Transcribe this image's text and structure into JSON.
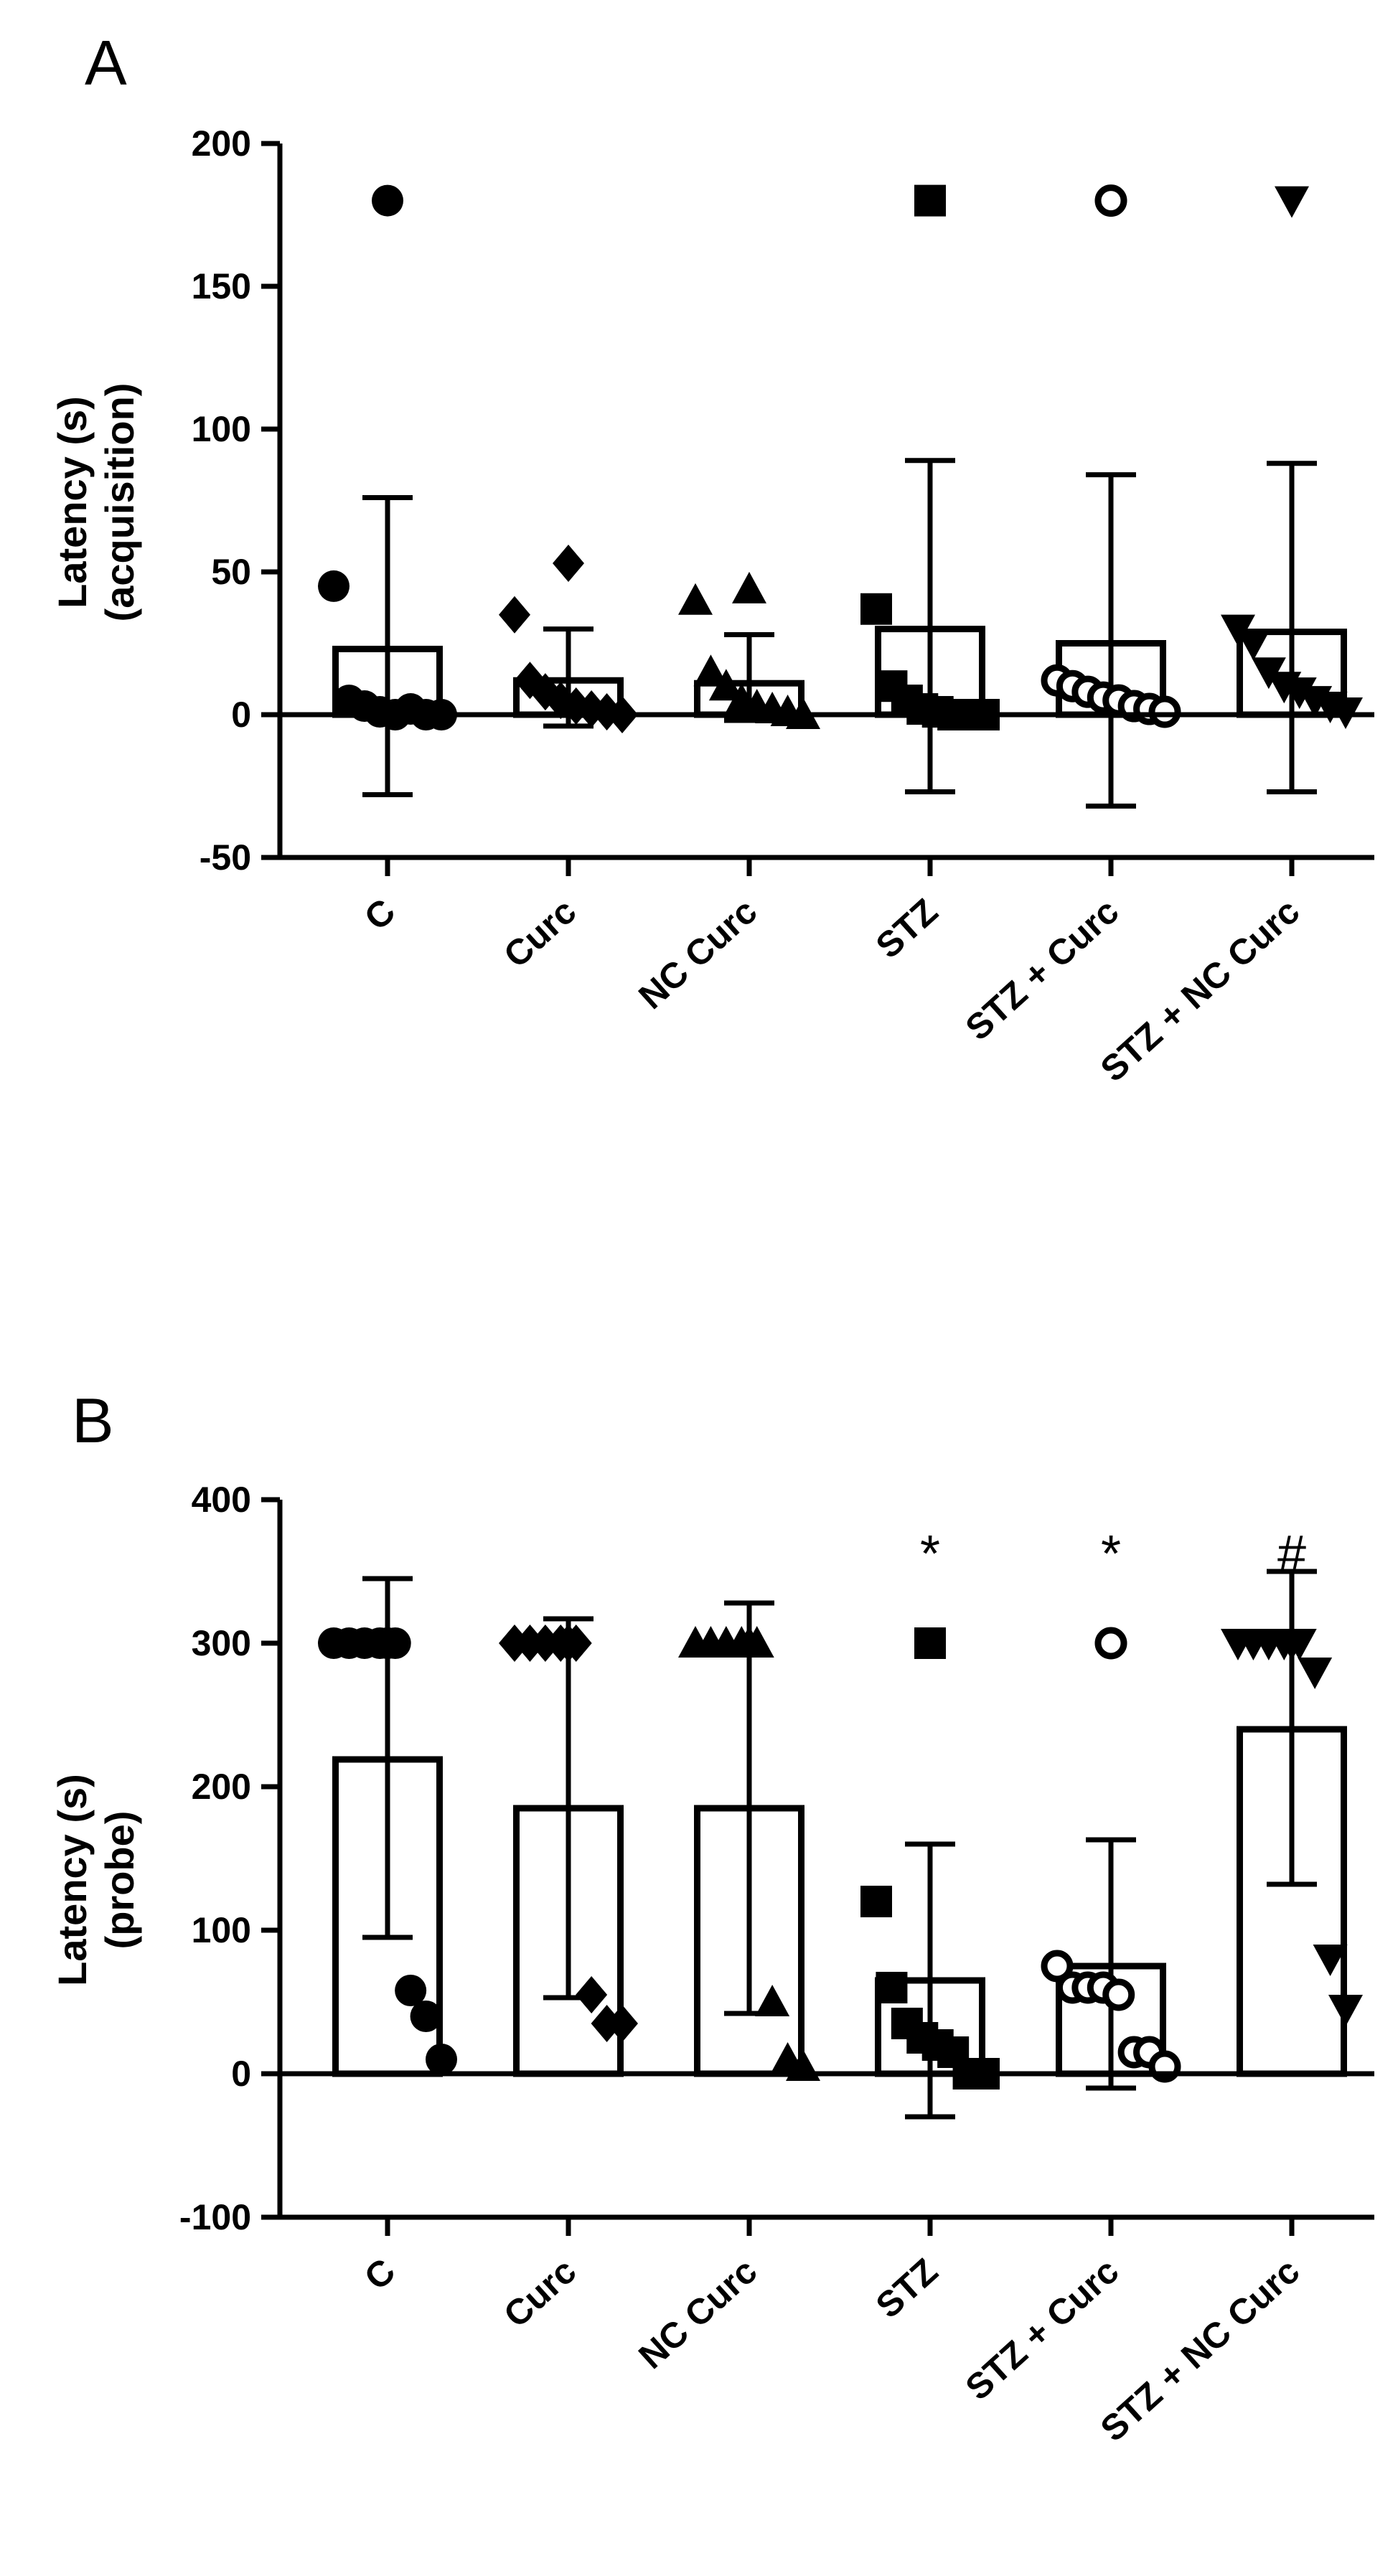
{
  "chart_data": [
    {
      "type": "bar",
      "panel_label": "A",
      "categories": [
        "C",
        "Curc",
        "NC Curc",
        "STZ",
        "STZ + Curc",
        "STZ + NC Curc"
      ],
      "ylabel_lines": [
        "Latency (s)",
        "(acquisition)"
      ],
      "ylim": [
        -50,
        200
      ],
      "yticks": [
        -50,
        0,
        50,
        100,
        150,
        200
      ],
      "values": [
        23,
        12,
        11,
        30,
        25,
        29
      ],
      "error_upper": [
        76,
        30,
        28,
        89,
        84,
        88
      ],
      "error_lower": [
        -28,
        -4,
        -2,
        -27,
        -32,
        -27
      ],
      "markers": [
        "circle",
        "diamond",
        "triangle-up",
        "square",
        "circle-open",
        "triangle-down"
      ],
      "points": [
        [
          180,
          45,
          5,
          3,
          1,
          0,
          2,
          0,
          0
        ],
        [
          53,
          35,
          12,
          8,
          5,
          3,
          2,
          1,
          0
        ],
        [
          44,
          40,
          15,
          10,
          5,
          3,
          2,
          1,
          0
        ],
        [
          180,
          37,
          10,
          5,
          2,
          1,
          0,
          0,
          0
        ],
        [
          180,
          12,
          10,
          8,
          6,
          5,
          3,
          2,
          1
        ],
        [
          180,
          30,
          25,
          15,
          10,
          8,
          5,
          3,
          1
        ]
      ],
      "annotations": [
        "",
        "",
        "",
        "",
        "",
        ""
      ]
    },
    {
      "type": "bar",
      "panel_label": "B",
      "categories": [
        "C",
        "Curc",
        "NC Curc",
        "STZ",
        "STZ + Curc",
        "STZ + NC Curc"
      ],
      "ylabel_lines": [
        "Latency (s)",
        "(probe)"
      ],
      "ylim": [
        -100,
        400
      ],
      "yticks": [
        -100,
        0,
        100,
        200,
        300,
        400
      ],
      "values": [
        219,
        185,
        185,
        65,
        75,
        240
      ],
      "error_upper": [
        345,
        317,
        328,
        160,
        163,
        350
      ],
      "error_lower": [
        95,
        53,
        42,
        -30,
        -10,
        132
      ],
      "markers": [
        "circle",
        "diamond",
        "triangle-up",
        "square",
        "circle-open",
        "triangle-down"
      ],
      "points": [
        [
          300,
          300,
          300,
          300,
          300,
          300,
          58,
          40,
          10
        ],
        [
          300,
          300,
          300,
          300,
          300,
          300,
          55,
          35,
          35
        ],
        [
          300,
          300,
          300,
          300,
          300,
          300,
          50,
          10,
          5
        ],
        [
          300,
          120,
          60,
          35,
          25,
          20,
          15,
          0,
          0
        ],
        [
          300,
          75,
          60,
          60,
          60,
          55,
          15,
          15,
          5
        ],
        [
          300,
          300,
          300,
          300,
          300,
          300,
          280,
          80,
          45
        ]
      ],
      "annotations": [
        "",
        "",
        "",
        "*",
        "*",
        "#"
      ]
    }
  ]
}
